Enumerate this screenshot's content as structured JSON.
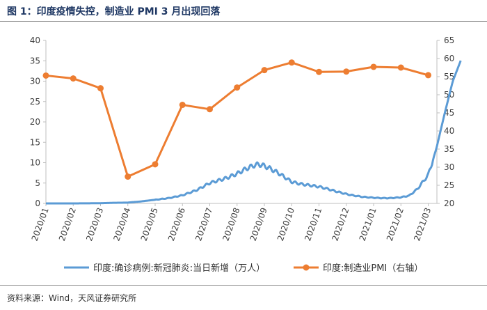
{
  "header": {
    "title": "图 1：印度疫情失控，制造业 PMI 3 月出现回落"
  },
  "footer": {
    "source": "资料来源：Wind，天风证券研究所"
  },
  "colors": {
    "cases": "#5b9bd5",
    "pmi": "#ed7d31",
    "axis": "#bfbfbf",
    "text": "#404040"
  },
  "chart_data": {
    "type": "line",
    "x_labels": [
      "2020/01",
      "2020/02",
      "2020/03",
      "2020/04",
      "2020/05",
      "2020/06",
      "2020/07",
      "2020/08",
      "2020/09",
      "2020/10",
      "2020/11",
      "2020/12",
      "2021/01",
      "2021/02",
      "2021/03"
    ],
    "y_left": {
      "min": 0,
      "max": 40,
      "ticks": [
        "0",
        "5",
        "10",
        "15",
        "20",
        "25",
        "30",
        "35",
        "40"
      ]
    },
    "y_right": {
      "min": 20,
      "max": 65,
      "ticks": [
        "20",
        "25",
        "30",
        "35",
        "40",
        "45",
        "50",
        "55",
        "60",
        "65"
      ]
    },
    "legend_position": "bottom",
    "series": [
      {
        "name": "印度:确诊病例:新冠肺炎:当日新增（万人）",
        "axis": "left",
        "style": "line",
        "points": [
          [
            0,
            0
          ],
          [
            1,
            0
          ],
          [
            2,
            0.05
          ],
          [
            2.5,
            0.15
          ],
          [
            3,
            0.2
          ],
          [
            3.5,
            0.5
          ],
          [
            4,
            0.9
          ],
          [
            4.5,
            1.3
          ],
          [
            5,
            2.0
          ],
          [
            5.5,
            3.2
          ],
          [
            6,
            5.0
          ],
          [
            6.3,
            5.6
          ],
          [
            6.6,
            6.2
          ],
          [
            7,
            7.3
          ],
          [
            7.3,
            8.4
          ],
          [
            7.6,
            9.3
          ],
          [
            7.8,
            9.6
          ],
          [
            8,
            9.2
          ],
          [
            8.2,
            8.6
          ],
          [
            8.5,
            7.5
          ],
          [
            8.8,
            6.2
          ],
          [
            9,
            5.3
          ],
          [
            9.3,
            4.8
          ],
          [
            9.6,
            4.5
          ],
          [
            10,
            4.1
          ],
          [
            10.3,
            3.6
          ],
          [
            10.6,
            3.0
          ],
          [
            11,
            2.3
          ],
          [
            11.3,
            1.9
          ],
          [
            11.6,
            1.6
          ],
          [
            12,
            1.4
          ],
          [
            12.3,
            1.3
          ],
          [
            12.6,
            1.3
          ],
          [
            13,
            1.5
          ],
          [
            13.3,
            1.9
          ],
          [
            13.6,
            3.5
          ],
          [
            14,
            7.0
          ],
          [
            14.3,
            13.5
          ],
          [
            14.6,
            22.0
          ],
          [
            14.9,
            30.0
          ],
          [
            15.2,
            35.2
          ]
        ]
      },
      {
        "name": "印度:制造业PMI（右轴）",
        "axis": "right",
        "style": "line-marker",
        "points": [
          [
            0,
            55.3
          ],
          [
            1,
            54.5
          ],
          [
            2,
            51.8
          ],
          [
            3,
            27.4
          ],
          [
            4,
            30.8
          ],
          [
            5,
            47.2
          ],
          [
            6,
            46.0
          ],
          [
            7,
            52.0
          ],
          [
            8,
            56.8
          ],
          [
            9,
            58.9
          ],
          [
            10,
            56.3
          ],
          [
            11,
            56.4
          ],
          [
            12,
            57.7
          ],
          [
            13,
            57.5
          ],
          [
            14,
            55.4
          ]
        ]
      }
    ]
  }
}
